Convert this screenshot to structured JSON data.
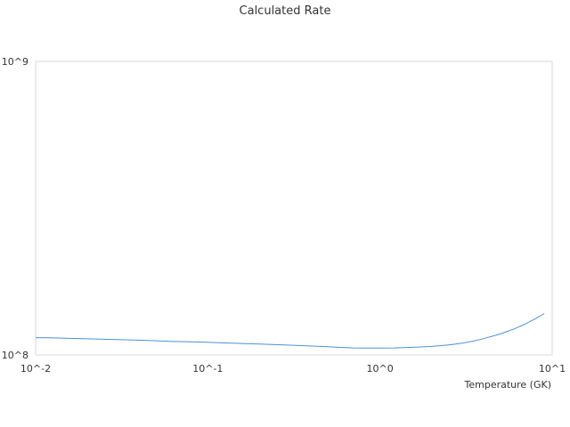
{
  "chart_data": {
    "type": "line",
    "title": "Calculated Rate",
    "xlabel": "Temperature (GK)",
    "ylabel": "",
    "x_scale": "log",
    "y_scale": "log",
    "xlim": [
      0.01,
      10
    ],
    "ylim": [
      100000000,
      1000000000
    ],
    "x_ticks": [
      {
        "value": 0.01,
        "label": "10^-2"
      },
      {
        "value": 0.1,
        "label": "10^-1"
      },
      {
        "value": 1,
        "label": "10^0"
      },
      {
        "value": 10,
        "label": "10^1"
      }
    ],
    "y_ticks": [
      {
        "value": 100000000,
        "label": "10^8"
      },
      {
        "value": 1000000000,
        "label": "10^9"
      }
    ],
    "grid": false,
    "series": [
      {
        "color": "#4a90d9",
        "x": [
          0.01,
          0.012,
          0.015,
          0.02,
          0.025,
          0.03,
          0.04,
          0.05,
          0.06,
          0.08,
          0.1,
          0.15,
          0.2,
          0.3,
          0.4,
          0.5,
          0.6,
          0.7,
          0.8,
          1.0,
          1.2,
          1.5,
          2.0,
          2.5,
          3.0,
          3.5,
          4.0,
          5.0,
          6.0,
          7.0,
          8.0,
          9.0
        ],
        "y": [
          114500000,
          114300000,
          114000000,
          113500000,
          113100000,
          112800000,
          112300000,
          111800000,
          111300000,
          110800000,
          110400000,
          109500000,
          108900000,
          108000000,
          107200000,
          106600000,
          106000000,
          105700000,
          105600000,
          105600000,
          105700000,
          106100000,
          106900000,
          108100000,
          109700000,
          111500000,
          113600000,
          117900000,
          122600000,
          127600000,
          132900000,
          138300000
        ]
      }
    ]
  }
}
